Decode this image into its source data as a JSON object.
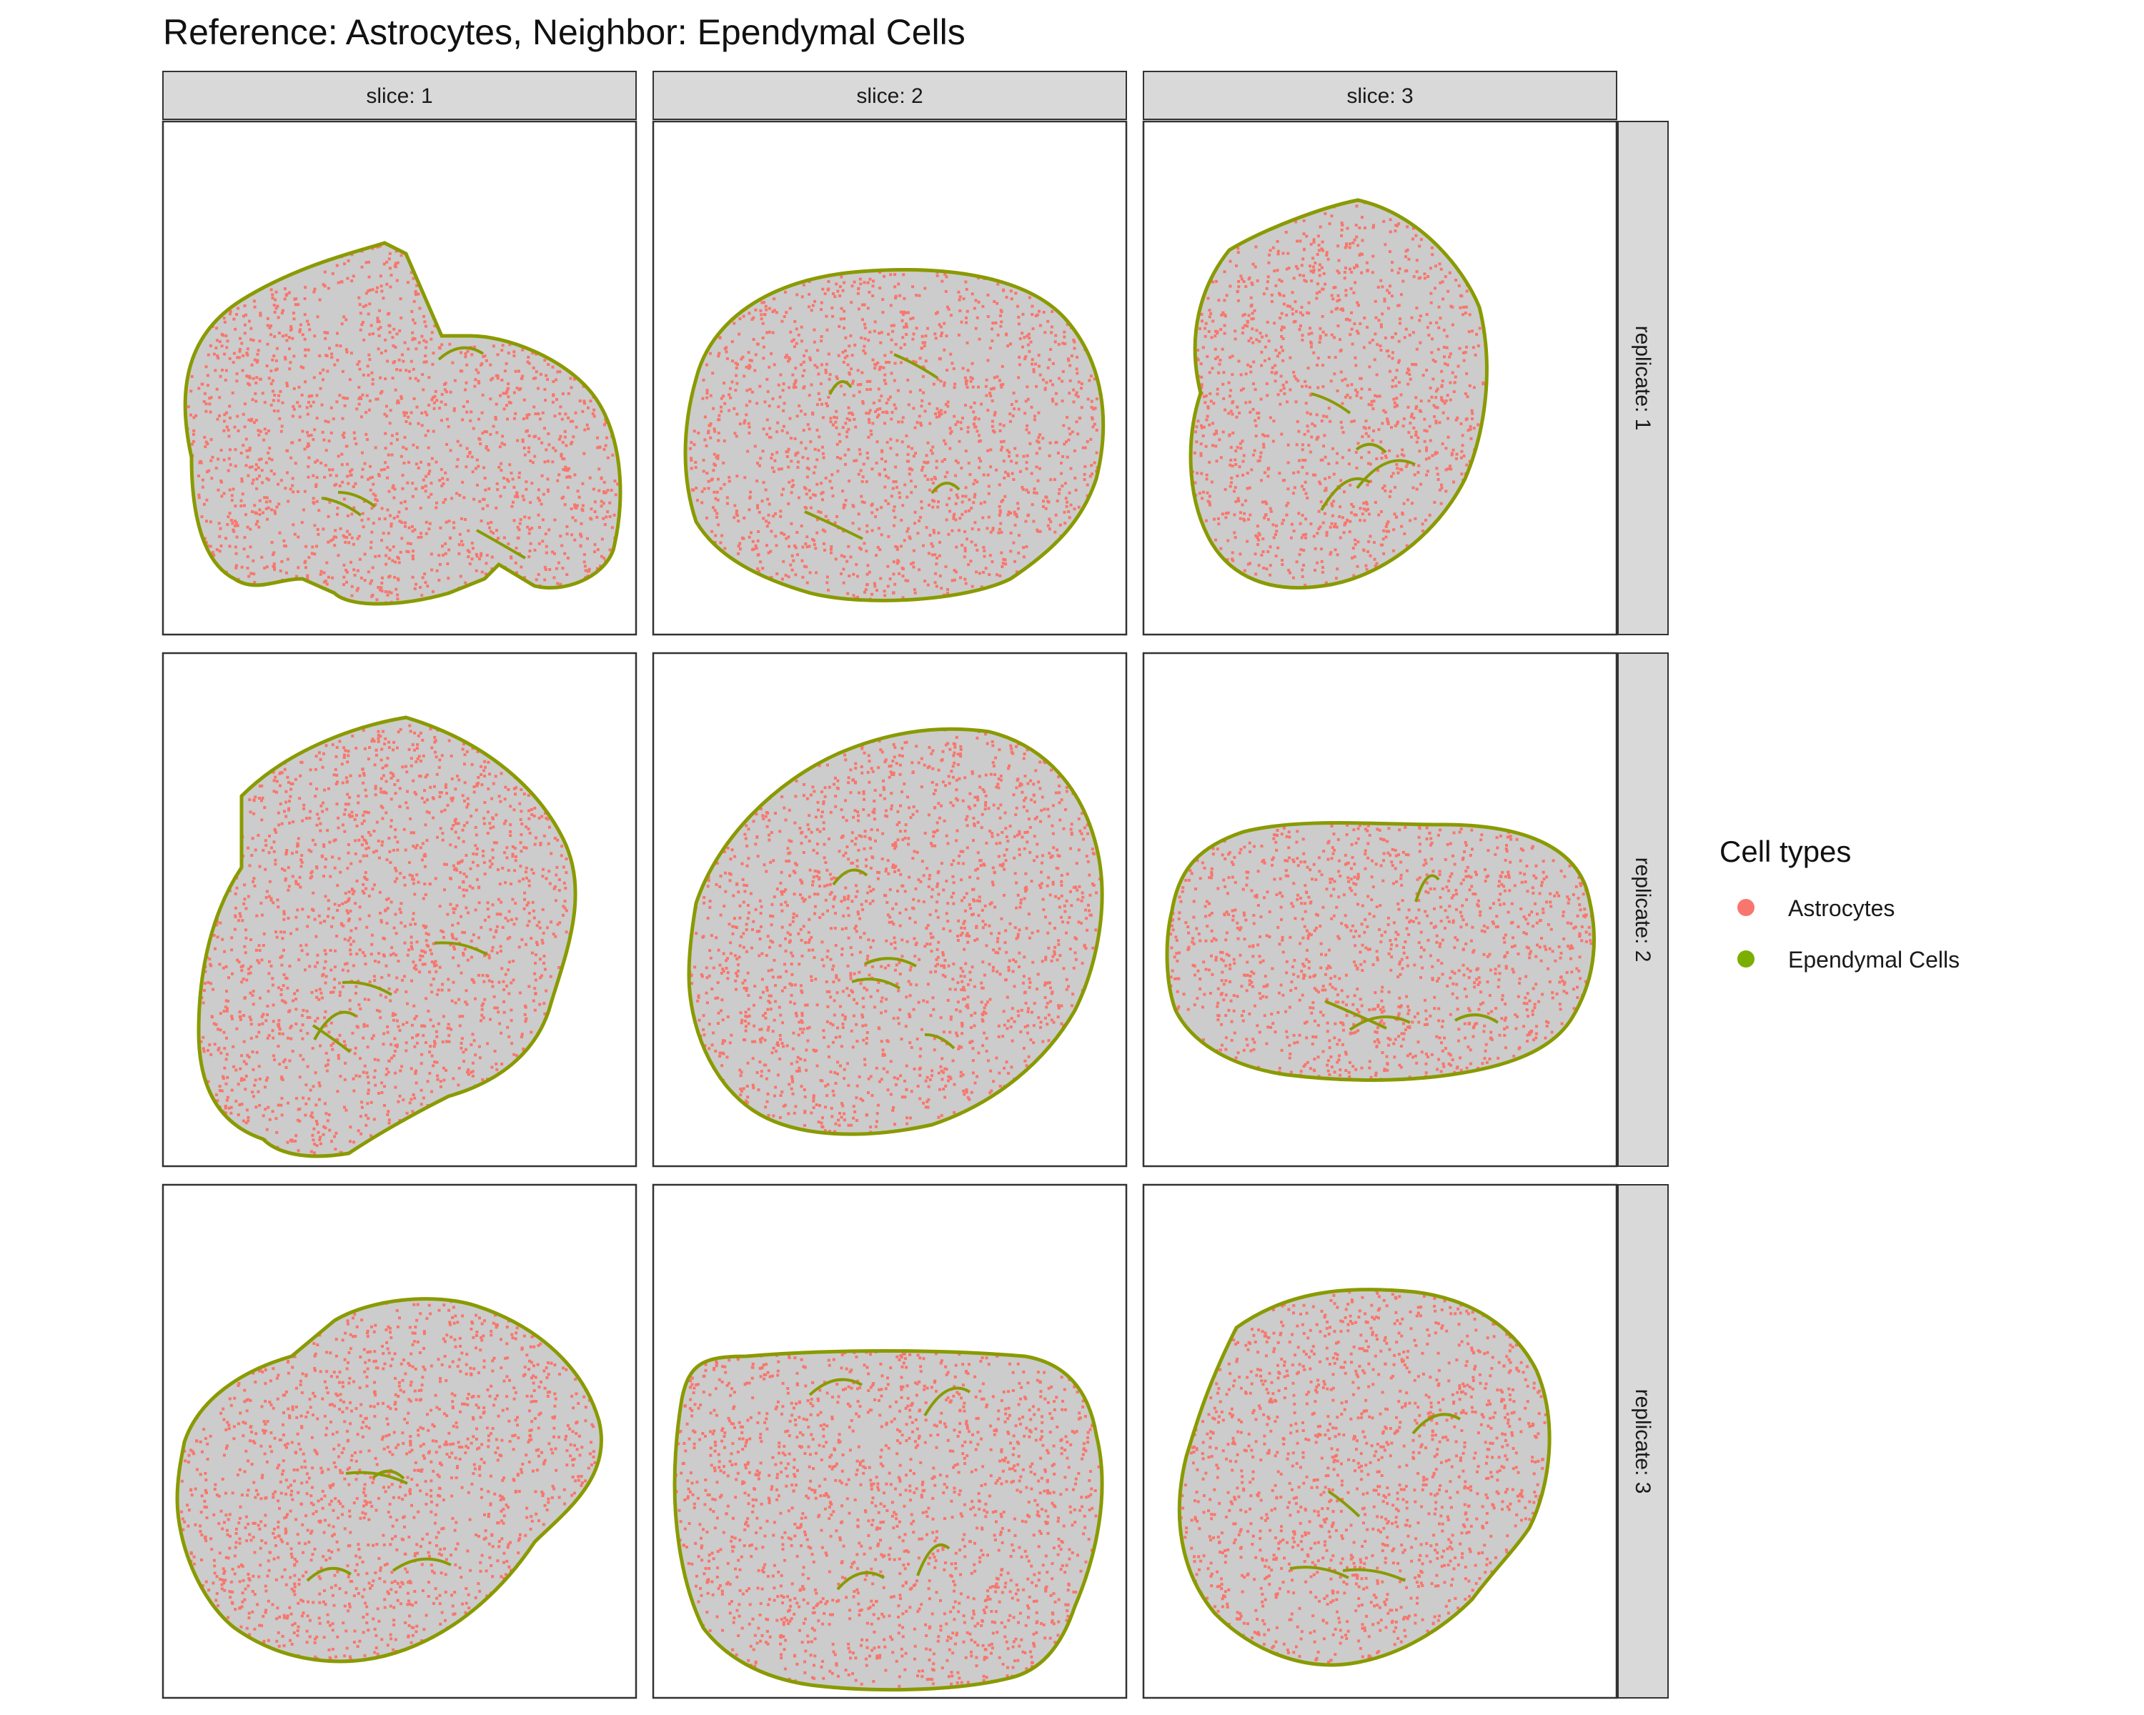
{
  "chart_data": {
    "type": "scatter",
    "title": "Reference: Astrocytes, Neighbor: Ependymal Cells",
    "facet_columns": [
      "slice: 1",
      "slice: 2",
      "slice: 3"
    ],
    "facet_rows": [
      "replicate: 1",
      "replicate: 2",
      "replicate: 3"
    ],
    "legend": {
      "title": "Cell types",
      "placement": "right",
      "entries": [
        {
          "name": "Astrocytes",
          "color": "#F8766D"
        },
        {
          "name": "Ependymal Cells",
          "color": "#7CAE00"
        }
      ]
    },
    "other_cells_color": "#cccccc",
    "ependymal_color": "#8a9a00",
    "grid": false,
    "axes_shown": false
  }
}
